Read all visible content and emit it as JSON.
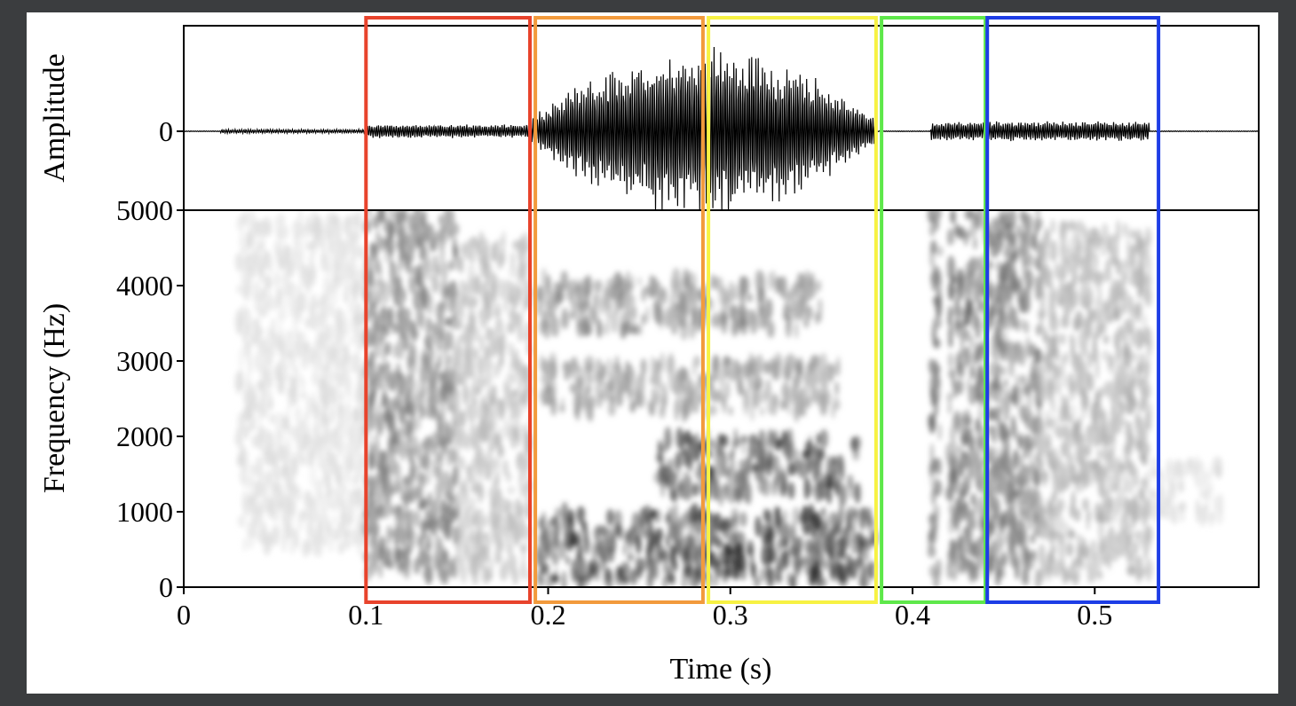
{
  "chart_data": {
    "type": "spectrogram",
    "xlabel": "Time (s)",
    "x_range": [
      0,
      0.59
    ],
    "x_ticks": [
      {
        "value": 0,
        "label": "0"
      },
      {
        "value": 0.1,
        "label": "0.1"
      },
      {
        "value": 0.2,
        "label": "0.2"
      },
      {
        "value": 0.3,
        "label": "0.3"
      },
      {
        "value": 0.4,
        "label": "0.4"
      },
      {
        "value": 0.5,
        "label": "0.5"
      }
    ],
    "waveform": {
      "ylabel": "Amplitude",
      "y_ticks": [
        {
          "value": 0,
          "label": "0"
        }
      ],
      "envelope": [
        {
          "start": 0.02,
          "end": 0.1,
          "amp": 0.02
        },
        {
          "start": 0.1,
          "end": 0.19,
          "amp": 0.07
        },
        {
          "start": 0.19,
          "end": 0.38,
          "amp": 0.85
        },
        {
          "start": 0.41,
          "end": 0.53,
          "amp": 0.1
        }
      ]
    },
    "spectrogram": {
      "ylabel": "Frequency (Hz)",
      "y_range": [
        0,
        5000
      ],
      "y_ticks": [
        {
          "value": 0,
          "label": "0"
        },
        {
          "value": 1000,
          "label": "1000"
        },
        {
          "value": 2000,
          "label": "2000"
        },
        {
          "value": 3000,
          "label": "3000"
        },
        {
          "value": 4000,
          "label": "4000"
        },
        {
          "value": 5000,
          "label": "5000"
        }
      ],
      "regions": [
        {
          "t0": 0.03,
          "t1": 0.1,
          "f0": 500,
          "f1": 4900,
          "intensity": 0.15
        },
        {
          "t0": 0.1,
          "t1": 0.15,
          "f0": 100,
          "f1": 5000,
          "intensity": 0.55
        },
        {
          "t0": 0.15,
          "t1": 0.19,
          "f0": 100,
          "f1": 4600,
          "intensity": 0.3
        },
        {
          "t0": 0.195,
          "t1": 0.38,
          "f0": 50,
          "f1": 1000,
          "intensity": 0.85
        },
        {
          "t0": 0.26,
          "t1": 0.37,
          "f0": 1200,
          "f1": 2000,
          "intensity": 0.8
        },
        {
          "t0": 0.195,
          "t1": 0.36,
          "f0": 2300,
          "f1": 3000,
          "intensity": 0.45
        },
        {
          "t0": 0.195,
          "t1": 0.35,
          "f0": 3400,
          "f1": 4100,
          "intensity": 0.5
        },
        {
          "t0": 0.41,
          "t1": 0.415,
          "f0": 100,
          "f1": 5000,
          "intensity": 0.6
        },
        {
          "t0": 0.42,
          "t1": 0.47,
          "f0": 100,
          "f1": 5000,
          "intensity": 0.6
        },
        {
          "t0": 0.47,
          "t1": 0.53,
          "f0": 100,
          "f1": 4800,
          "intensity": 0.35
        },
        {
          "t0": 0.53,
          "t1": 0.57,
          "f0": 900,
          "f1": 1700,
          "intensity": 0.15
        }
      ]
    },
    "highlight_boxes": [
      {
        "t0": 0.1,
        "t1": 0.19,
        "color": "#e8432c"
      },
      {
        "t0": 0.193,
        "t1": 0.285,
        "color": "#f29a3c"
      },
      {
        "t0": 0.288,
        "t1": 0.38,
        "color": "#f7f243"
      },
      {
        "t0": 0.383,
        "t1": 0.44,
        "color": "#5ee84a"
      },
      {
        "t0": 0.441,
        "t1": 0.535,
        "color": "#1d3de6"
      }
    ],
    "colors": {
      "background": "#3b3d3f",
      "plot_bg": "#ffffff",
      "ink": "#000000"
    }
  }
}
